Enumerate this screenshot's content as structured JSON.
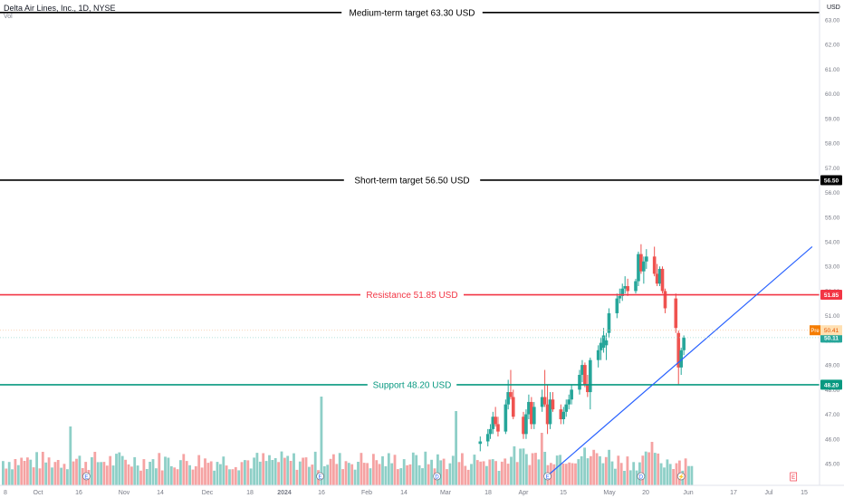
{
  "header": {
    "symbol_line": "Delta Air Lines, Inc., 1D, NYSE",
    "vol_label": "Vol"
  },
  "axis": {
    "currency": "USD"
  },
  "colors": {
    "up": "#26a69a",
    "down": "#ef5350",
    "vol_up": "#8ecfc7",
    "vol_down": "#f5a3a3",
    "resistance": "#f23645",
    "support": "#089981",
    "target": "#000000",
    "trendline": "#2962ff",
    "grid": "#ffffff",
    "axis_text": "#787b86"
  },
  "chart_data": {
    "type": "candlestick",
    "title": "Delta Air Lines, Inc., 1D, NYSE",
    "ylim": [
      44.5,
      63.6
    ],
    "y_ticks": [
      45.0,
      46.0,
      47.0,
      48.0,
      49.0,
      50.0,
      51.0,
      52.0,
      53.0,
      54.0,
      55.0,
      56.0,
      57.0,
      58.0,
      59.0,
      60.0,
      61.0,
      62.0,
      63.0
    ],
    "x_tick_labels": [
      "8",
      "Oct",
      "16",
      "Nov",
      "14",
      "Dec",
      "18",
      "2024",
      "16",
      "Feb",
      "14",
      "Mar",
      "18",
      "Apr",
      "15",
      "May",
      "20",
      "Jun",
      "17",
      "Jul",
      "15"
    ],
    "levels": [
      {
        "label": "Medium-term target 63.30 USD",
        "value": 63.3,
        "color": "#000000",
        "badge": ""
      },
      {
        "label": "Short-term target 56.50 USD",
        "value": 56.5,
        "color": "#000000",
        "badge": "56.50"
      },
      {
        "label": "Resistance 51.85 USD",
        "value": 51.85,
        "color": "#f23645",
        "badge": "51.85"
      },
      {
        "label": "Support 48.20 USD",
        "value": 48.2,
        "color": "#089981",
        "badge": "48.20"
      }
    ],
    "pre_market": {
      "label": "Pre",
      "value": 50.41
    },
    "last_price": {
      "value": 50.11
    },
    "trendline": {
      "from": {
        "date": "2024-04-11",
        "price": 44.6
      },
      "to": {
        "date": "2024-07-18",
        "price": 53.8
      }
    },
    "event_markers": [
      {
        "date": "2023-10-12",
        "letter": "E"
      },
      {
        "date": "2024-01-12",
        "letter": "E"
      },
      {
        "date": "2024-02-27",
        "letter": "D"
      },
      {
        "date": "2024-04-10",
        "letter": "E"
      },
      {
        "date": "2024-05-15",
        "letter": "D"
      },
      {
        "date": "2024-05-30",
        "letter": "⚡"
      },
      {
        "date": "2024-07-11",
        "letter": "E"
      }
    ],
    "candles": [
      {
        "date": "2024-03-15",
        "open": 45.8,
        "high": 46.1,
        "low": 45.5,
        "close": 45.9
      },
      {
        "date": "2024-03-18",
        "open": 45.9,
        "high": 46.4,
        "low": 45.7,
        "close": 46.2
      },
      {
        "date": "2024-03-19",
        "open": 46.2,
        "high": 46.6,
        "low": 46.0,
        "close": 46.4
      },
      {
        "date": "2024-03-20",
        "open": 46.4,
        "high": 47.1,
        "low": 46.2,
        "close": 46.9
      },
      {
        "date": "2024-03-21",
        "open": 46.9,
        "high": 47.3,
        "low": 46.5,
        "close": 46.6
      },
      {
        "date": "2024-03-22",
        "open": 46.6,
        "high": 46.9,
        "low": 46.1,
        "close": 46.3
      },
      {
        "date": "2024-03-25",
        "open": 46.3,
        "high": 47.6,
        "low": 46.2,
        "close": 47.4
      },
      {
        "date": "2024-03-26",
        "open": 47.4,
        "high": 48.4,
        "low": 47.2,
        "close": 47.9
      },
      {
        "date": "2024-03-27",
        "open": 47.9,
        "high": 48.8,
        "low": 47.6,
        "close": 47.7
      },
      {
        "date": "2024-03-28",
        "open": 47.7,
        "high": 48.0,
        "low": 46.8,
        "close": 46.9
      },
      {
        "date": "2024-04-01",
        "open": 46.9,
        "high": 47.1,
        "low": 46.0,
        "close": 46.2
      },
      {
        "date": "2024-04-02",
        "open": 46.2,
        "high": 47.2,
        "low": 46.0,
        "close": 47.0
      },
      {
        "date": "2024-04-03",
        "open": 47.0,
        "high": 47.8,
        "low": 46.8,
        "close": 47.5
      },
      {
        "date": "2024-04-04",
        "open": 47.5,
        "high": 47.7,
        "low": 46.4,
        "close": 46.6
      },
      {
        "date": "2024-04-05",
        "open": 46.6,
        "high": 47.5,
        "low": 46.4,
        "close": 47.3
      },
      {
        "date": "2024-04-08",
        "open": 47.3,
        "high": 48.0,
        "low": 47.1,
        "close": 47.7
      },
      {
        "date": "2024-04-09",
        "open": 47.7,
        "high": 48.8,
        "low": 47.3,
        "close": 47.4
      },
      {
        "date": "2024-04-10",
        "open": 47.4,
        "high": 48.2,
        "low": 46.2,
        "close": 46.6
      },
      {
        "date": "2024-04-11",
        "open": 46.6,
        "high": 47.9,
        "low": 46.4,
        "close": 47.6
      },
      {
        "date": "2024-04-12",
        "open": 47.6,
        "high": 47.9,
        "low": 47.1,
        "close": 47.2
      },
      {
        "date": "2024-04-15",
        "open": 47.2,
        "high": 47.4,
        "low": 46.6,
        "close": 46.8
      },
      {
        "date": "2024-04-16",
        "open": 46.8,
        "high": 47.3,
        "low": 46.6,
        "close": 47.1
      },
      {
        "date": "2024-04-17",
        "open": 47.1,
        "high": 47.6,
        "low": 46.9,
        "close": 47.4
      },
      {
        "date": "2024-04-18",
        "open": 47.4,
        "high": 47.8,
        "low": 47.2,
        "close": 47.6
      },
      {
        "date": "2024-04-19",
        "open": 47.6,
        "high": 48.2,
        "low": 47.4,
        "close": 48.0
      },
      {
        "date": "2024-04-22",
        "open": 48.0,
        "high": 48.8,
        "low": 47.8,
        "close": 48.6
      },
      {
        "date": "2024-04-23",
        "open": 48.6,
        "high": 49.2,
        "low": 48.3,
        "close": 49.0
      },
      {
        "date": "2024-04-24",
        "open": 49.0,
        "high": 49.1,
        "low": 48.1,
        "close": 48.2
      },
      {
        "date": "2024-04-25",
        "open": 48.2,
        "high": 48.6,
        "low": 47.7,
        "close": 47.9
      },
      {
        "date": "2024-04-26",
        "open": 47.9,
        "high": 49.3,
        "low": 47.2,
        "close": 49.2
      },
      {
        "date": "2024-04-29",
        "open": 49.2,
        "high": 49.8,
        "low": 48.9,
        "close": 49.6
      },
      {
        "date": "2024-04-30",
        "open": 49.6,
        "high": 50.1,
        "low": 49.2,
        "close": 49.9
      },
      {
        "date": "2024-05-01",
        "open": 49.7,
        "high": 50.5,
        "low": 49.5,
        "close": 50.2
      },
      {
        "date": "2024-05-02",
        "open": 49.8,
        "high": 50.3,
        "low": 49.2,
        "close": 50.0
      },
      {
        "date": "2024-05-03",
        "open": 50.3,
        "high": 51.3,
        "low": 50.1,
        "close": 51.1
      },
      {
        "date": "2024-05-06",
        "open": 51.1,
        "high": 51.9,
        "low": 50.9,
        "close": 51.7
      },
      {
        "date": "2024-05-07",
        "open": 51.7,
        "high": 52.1,
        "low": 51.5,
        "close": 51.8
      },
      {
        "date": "2024-05-08",
        "open": 51.8,
        "high": 52.3,
        "low": 51.6,
        "close": 52.1
      },
      {
        "date": "2024-05-09",
        "open": 52.1,
        "high": 52.6,
        "low": 51.9,
        "close": 52.2
      },
      {
        "date": "2024-05-10",
        "open": 52.2,
        "high": 52.5,
        "low": 51.8,
        "close": 52.0
      },
      {
        "date": "2024-05-13",
        "open": 52.0,
        "high": 52.5,
        "low": 51.9,
        "close": 52.4
      },
      {
        "date": "2024-05-14",
        "open": 52.4,
        "high": 53.6,
        "low": 52.2,
        "close": 53.5
      },
      {
        "date": "2024-05-15",
        "open": 53.5,
        "high": 53.9,
        "low": 52.7,
        "close": 52.8
      },
      {
        "date": "2024-05-16",
        "open": 52.8,
        "high": 53.4,
        "low": 52.3,
        "close": 53.2
      },
      {
        "date": "2024-05-17",
        "open": 53.2,
        "high": 53.7,
        "low": 52.9,
        "close": 53.4
      },
      {
        "date": "2024-05-20",
        "open": 53.4,
        "high": 53.8,
        "low": 52.6,
        "close": 52.7
      },
      {
        "date": "2024-05-21",
        "open": 52.7,
        "high": 53.1,
        "low": 52.2,
        "close": 52.3
      },
      {
        "date": "2024-05-22",
        "open": 52.3,
        "high": 53.0,
        "low": 52.2,
        "close": 52.9
      },
      {
        "date": "2024-05-23",
        "open": 52.9,
        "high": 53.0,
        "low": 51.9,
        "close": 52.0
      },
      {
        "date": "2024-05-24",
        "open": 52.0,
        "high": 52.1,
        "low": 51.1,
        "close": 51.3
      },
      {
        "date": "2024-05-28",
        "open": 51.7,
        "high": 51.9,
        "low": 50.3,
        "close": 50.5
      },
      {
        "date": "2024-05-29",
        "open": 50.3,
        "high": 50.4,
        "low": 48.2,
        "close": 48.9
      },
      {
        "date": "2024-05-30",
        "open": 48.9,
        "high": 49.7,
        "low": 48.6,
        "close": 49.6
      },
      {
        "date": "2024-05-31",
        "open": 49.6,
        "high": 50.2,
        "low": 49.4,
        "close": 50.11
      }
    ]
  }
}
